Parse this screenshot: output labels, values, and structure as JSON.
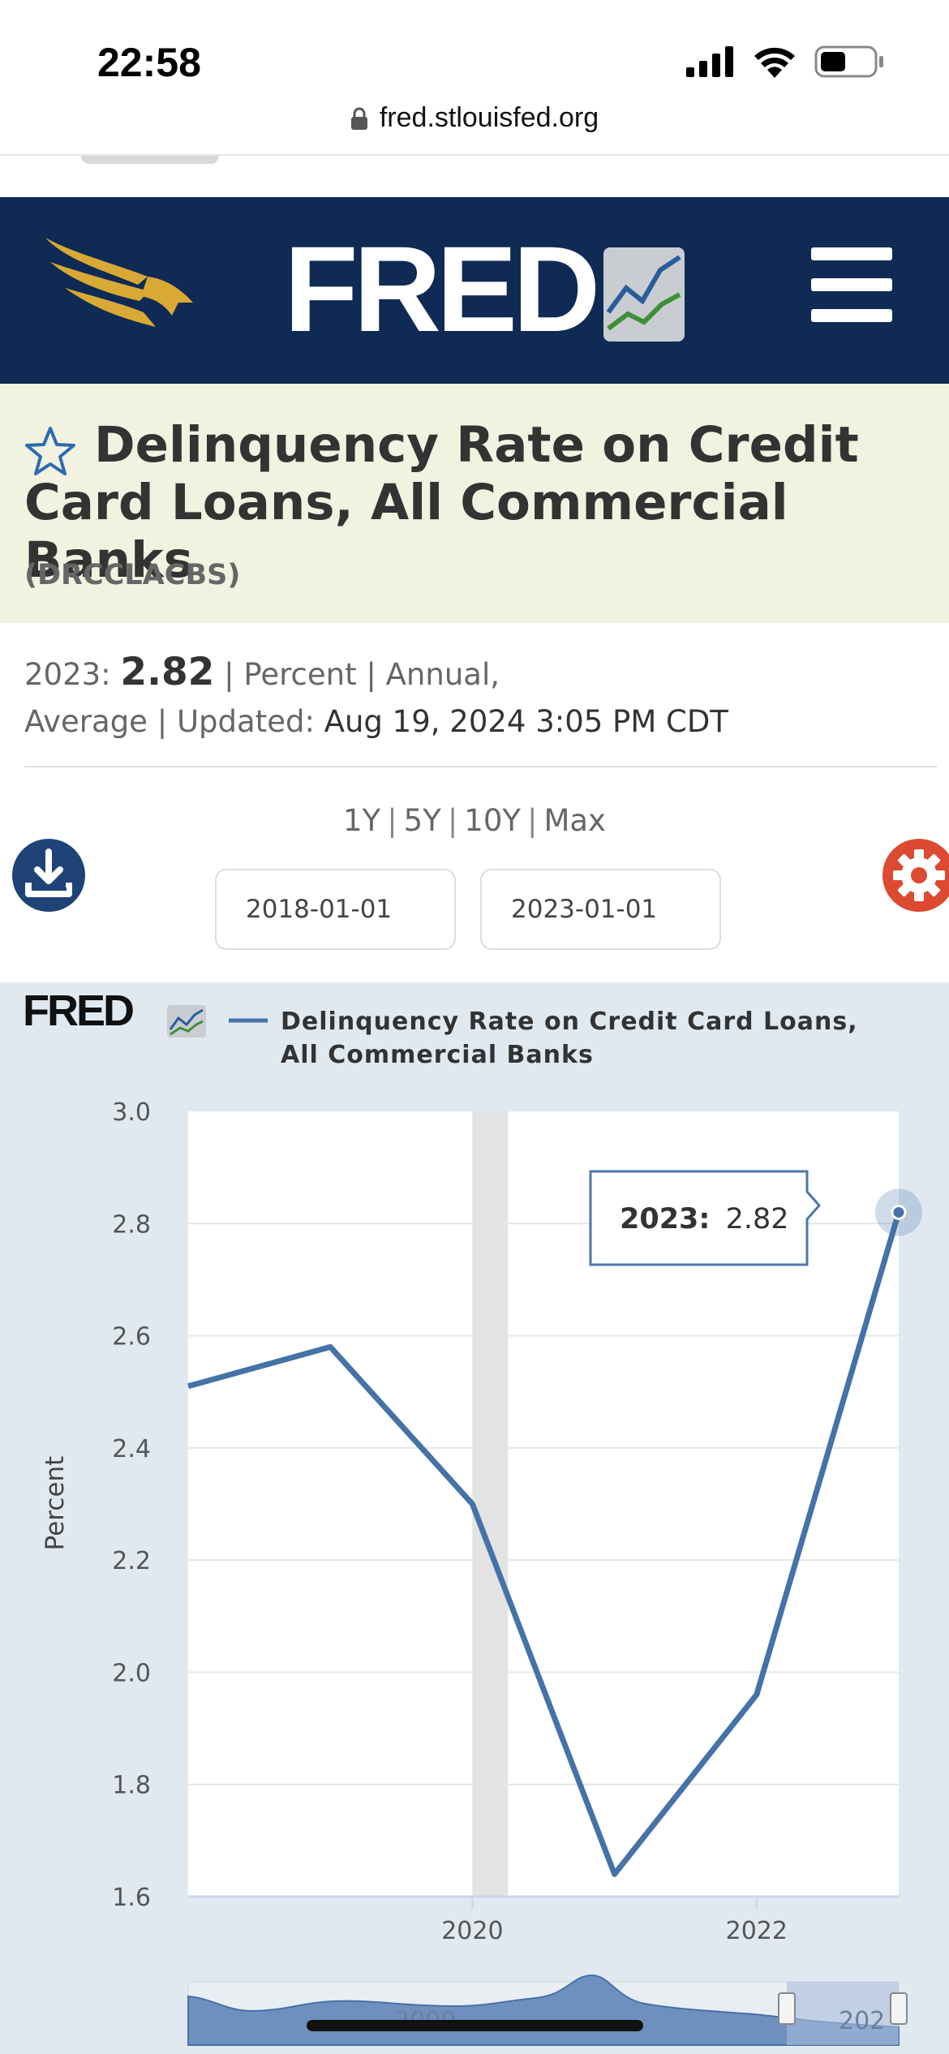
{
  "status_bar": {
    "time": "22:58"
  },
  "browser": {
    "url": "fred.stlouisfed.org"
  },
  "header": {
    "logo_text": "FRED",
    "menu_icon": "hamburger-icon"
  },
  "series": {
    "title": "Delinquency Rate on Credit Card Loans, All Commercial Banks",
    "id": "(DRCCLACBS)",
    "latest_period": "2023:",
    "latest_value": "2.82",
    "units": "Percent",
    "frequency_line1": "Annual,",
    "frequency_line2": "Average",
    "updated_label": "Updated:",
    "updated_value": "Aug 19, 2024 3:05 PM CDT"
  },
  "controls": {
    "ranges": [
      "1Y",
      "5Y",
      "10Y",
      "Max"
    ],
    "start_date": "2018-01-01",
    "end_date": "2023-01-01",
    "download_icon": "download-icon",
    "settings_icon": "gear-icon"
  },
  "colors": {
    "header_bg": "#0f2a54",
    "title_band_bg": "#f1f2e0",
    "chart_bg": "#e1e9f0",
    "series_line": "#4572a7",
    "settings_button": "#dd4a32",
    "download_button": "#1f4376",
    "eagle_gold": "#d9a935"
  },
  "chart_data": {
    "type": "line",
    "watermark": "FRED",
    "legend_label_line1": "Delinquency Rate on Credit Card Loans,",
    "legend_label_line2": "All Commercial Banks",
    "ylabel": "Percent",
    "ylim": [
      1.6,
      3.0
    ],
    "yticks": [
      "3.0",
      "2.8",
      "2.6",
      "2.4",
      "2.2",
      "2.0",
      "1.8",
      "1.6"
    ],
    "xlim": [
      2018,
      2023
    ],
    "xticks": [
      {
        "value": 2020,
        "label": "2020"
      },
      {
        "value": 2022,
        "label": "2022"
      }
    ],
    "recession": [
      2020.0,
      2020.25
    ],
    "series": [
      {
        "x": [
          2018,
          2019,
          2020,
          2021,
          2022,
          2023
        ],
        "values": [
          2.51,
          2.58,
          2.3,
          1.64,
          1.96,
          2.82
        ]
      }
    ],
    "tooltip": {
      "label": "2023:",
      "value": "2.82"
    },
    "navigator_labels": [
      "2000",
      "202"
    ]
  }
}
